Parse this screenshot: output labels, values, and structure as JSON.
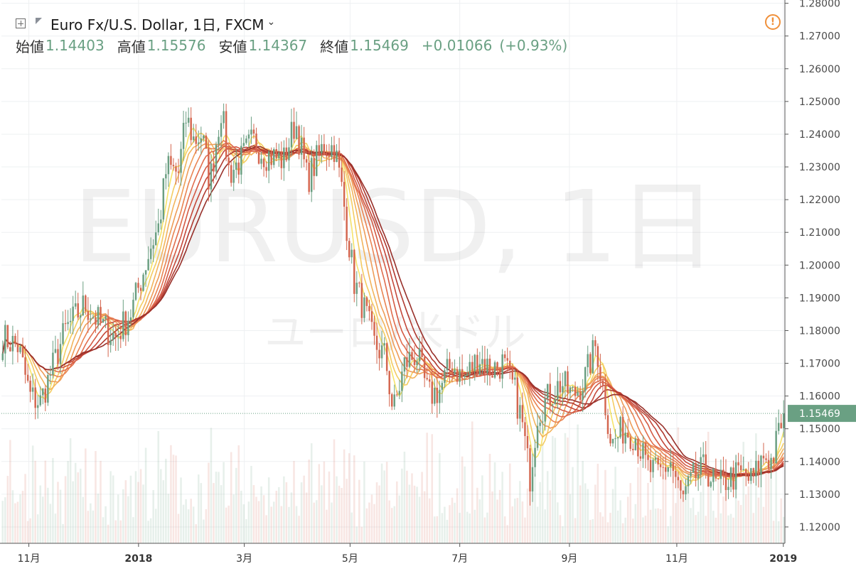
{
  "header": {
    "symbol": "Euro Fx/U.S. Dollar, 1日, FXCM",
    "chevron": "⌄",
    "alert_glyph": "!",
    "ohlc": [
      {
        "label": "始値",
        "value": "1.14403"
      },
      {
        "label": "高値",
        "value": "1.15576"
      },
      {
        "label": "安値",
        "value": "1.14367"
      },
      {
        "label": "終値",
        "value": "1.15469"
      }
    ],
    "change": "+0.01066",
    "change_pct": "(+0.93%)"
  },
  "watermark": {
    "symbol": "EURUSD, 1日",
    "name": "ユーロ/米ドル"
  },
  "colors": {
    "up": "#6b9f82",
    "down": "#d4664f",
    "axis_text": "#4a4a4a",
    "grid": "#eef0f2",
    "price_label_bg": "#6aa083",
    "ribbon": [
      "#f6e36a",
      "#f4cc62",
      "#f2b45c",
      "#ee9c58",
      "#e98453",
      "#e06d4d",
      "#d45a44",
      "#c4483a",
      "#b03a30",
      "#98302a"
    ]
  },
  "chart_data": {
    "type": "candlestick",
    "y_axis": {
      "min": 1.115,
      "max": 1.281,
      "position": "right",
      "ticks": [
        "1.28000",
        "1.27000",
        "1.26000",
        "1.25000",
        "1.24000",
        "1.23000",
        "1.22000",
        "1.21000",
        "1.20000",
        "1.19000",
        "1.18000",
        "1.17000",
        "1.16000",
        "1.15000",
        "1.14000",
        "1.13000",
        "1.12000"
      ]
    },
    "x_axis": {
      "labels": [
        {
          "text": "11月",
          "t": 0.035
        },
        {
          "text": "2018",
          "t": 0.175,
          "bold": true
        },
        {
          "text": "3月",
          "t": 0.31
        },
        {
          "text": "5月",
          "t": 0.445
        },
        {
          "text": "7月",
          "t": 0.585
        },
        {
          "text": "9月",
          "t": 0.725
        },
        {
          "text": "11月",
          "t": 0.862
        },
        {
          "text": "2019",
          "t": 0.998,
          "bold": true
        }
      ]
    },
    "last_price": "1.15469",
    "last_price_value": 1.15469,
    "grid": true,
    "ma_ribbon_periods": [
      5,
      8,
      11,
      14,
      17,
      20,
      23,
      26,
      29,
      32
    ],
    "anchors": [
      [
        0,
        1.178
      ],
      [
        0.02,
        1.175
      ],
      [
        0.035,
        1.16
      ],
      [
        0.048,
        1.158
      ],
      [
        0.06,
        1.166
      ],
      [
        0.08,
        1.18
      ],
      [
        0.105,
        1.188
      ],
      [
        0.125,
        1.182
      ],
      [
        0.145,
        1.178
      ],
      [
        0.165,
        1.186
      ],
      [
        0.18,
        1.198
      ],
      [
        0.19,
        1.206
      ],
      [
        0.2,
        1.212
      ],
      [
        0.21,
        1.23
      ],
      [
        0.225,
        1.228
      ],
      [
        0.235,
        1.245
      ],
      [
        0.245,
        1.238
      ],
      [
        0.255,
        1.24
      ],
      [
        0.265,
        1.225
      ],
      [
        0.28,
        1.248
      ],
      [
        0.29,
        1.228
      ],
      [
        0.305,
        1.232
      ],
      [
        0.32,
        1.238
      ],
      [
        0.335,
        1.234
      ],
      [
        0.36,
        1.232
      ],
      [
        0.375,
        1.244
      ],
      [
        0.39,
        1.226
      ],
      [
        0.41,
        1.236
      ],
      [
        0.425,
        1.236
      ],
      [
        0.435,
        1.222
      ],
      [
        0.45,
        1.195
      ],
      [
        0.465,
        1.185
      ],
      [
        0.475,
        1.176
      ],
      [
        0.49,
        1.172
      ],
      [
        0.5,
        1.155
      ],
      [
        0.515,
        1.17
      ],
      [
        0.53,
        1.173
      ],
      [
        0.545,
        1.16
      ],
      [
        0.56,
        1.162
      ],
      [
        0.575,
        1.17
      ],
      [
        0.59,
        1.165
      ],
      [
        0.61,
        1.172
      ],
      [
        0.625,
        1.168
      ],
      [
        0.64,
        1.17
      ],
      [
        0.655,
        1.162
      ],
      [
        0.665,
        1.152
      ],
      [
        0.675,
        1.135
      ],
      [
        0.685,
        1.155
      ],
      [
        0.7,
        1.16
      ],
      [
        0.715,
        1.164
      ],
      [
        0.73,
        1.16
      ],
      [
        0.745,
        1.165
      ],
      [
        0.76,
        1.176
      ],
      [
        0.77,
        1.16
      ],
      [
        0.78,
        1.145
      ],
      [
        0.795,
        1.15
      ],
      [
        0.81,
        1.148
      ],
      [
        0.825,
        1.138
      ],
      [
        0.84,
        1.136
      ],
      [
        0.855,
        1.14
      ],
      [
        0.87,
        1.128
      ],
      [
        0.885,
        1.135
      ],
      [
        0.9,
        1.138
      ],
      [
        0.915,
        1.132
      ],
      [
        0.93,
        1.135
      ],
      [
        0.945,
        1.136
      ],
      [
        0.96,
        1.134
      ],
      [
        0.975,
        1.142
      ],
      [
        0.985,
        1.14
      ],
      [
        1.0,
        1.155
      ]
    ],
    "volume_ceiling_fraction": 0.25
  }
}
